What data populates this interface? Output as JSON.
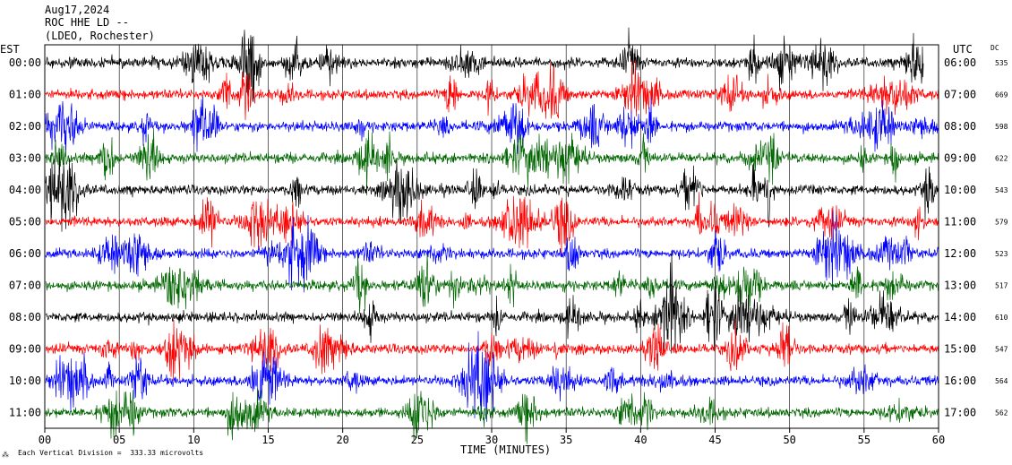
{
  "header": {
    "date": "Aug17,2024",
    "station": "ROC HHE LD --",
    "location": "(LDEO, Rochester)"
  },
  "left_axis_title": "EST",
  "right_axis_title": "UTC",
  "dc_title": "DC",
  "footer": {
    "scale_note": "Each Vertical Division =  333.33 microvolts",
    "icon": "ruler-icon"
  },
  "colors": {
    "black": "#000000",
    "red": "#ff0000",
    "blue": "#0000ff",
    "green": "#006600"
  },
  "chart_data": {
    "type": "line",
    "title": "Aug17,2024",
    "xlabel": "TIME (MINUTES)",
    "ylabel": "",
    "xlim": [
      0,
      60
    ],
    "x_ticks": [
      "00",
      "05",
      "10",
      "15",
      "20",
      "25",
      "30",
      "35",
      "40",
      "45",
      "50",
      "55",
      "60"
    ],
    "rows": [
      {
        "est": "00:00",
        "utc": "06:00",
        "dc": "535",
        "color": "black",
        "end_minute": 59.0
      },
      {
        "est": "01:00",
        "utc": "07:00",
        "dc": "669",
        "color": "red",
        "end_minute": 60
      },
      {
        "est": "02:00",
        "utc": "08:00",
        "dc": "598",
        "color": "blue",
        "end_minute": 60
      },
      {
        "est": "03:00",
        "utc": "09:00",
        "dc": "622",
        "color": "green",
        "end_minute": 60
      },
      {
        "est": "04:00",
        "utc": "10:00",
        "dc": "543",
        "color": "black",
        "end_minute": 60
      },
      {
        "est": "05:00",
        "utc": "11:00",
        "dc": "579",
        "color": "red",
        "end_minute": 60
      },
      {
        "est": "06:00",
        "utc": "12:00",
        "dc": "523",
        "color": "blue",
        "end_minute": 60
      },
      {
        "est": "07:00",
        "utc": "13:00",
        "dc": "517",
        "color": "green",
        "end_minute": 60
      },
      {
        "est": "08:00",
        "utc": "14:00",
        "dc": "610",
        "color": "black",
        "end_minute": 60
      },
      {
        "est": "09:00",
        "utc": "15:00",
        "dc": "547",
        "color": "red",
        "end_minute": 60
      },
      {
        "est": "10:00",
        "utc": "16:00",
        "dc": "564",
        "color": "blue",
        "end_minute": 60
      },
      {
        "est": "11:00",
        "utc": "17:00",
        "dc": "562",
        "color": "green",
        "end_minute": 60
      }
    ]
  }
}
